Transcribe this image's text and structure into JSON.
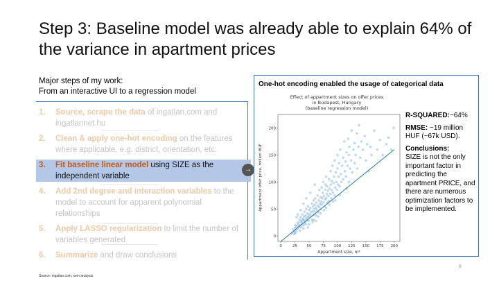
{
  "slide": {
    "title": "Step 3: Baseline model was already able to explain 64% of the variance in apartment prices",
    "steps_heading_1": "Major steps of my work:",
    "steps_heading_2": "From an interactive UI to a regression model",
    "steps": [
      {
        "num": "1.",
        "key": "Source, scrape the data",
        "rest": " of ingatlan.com and ingatlannet.hu"
      },
      {
        "num": "2.",
        "key": "Clean & apply one-hot encoding",
        "rest": " on the features where applicable, e.g. district, orientation, etc."
      },
      {
        "num": "3.",
        "key": "Fit baseline linear model",
        "rest": " using SIZE as the independent variable"
      },
      {
        "num": "4.",
        "key": "Add 2nd degree and interaction variables",
        "rest": " to the model to account for apparent polynomial relationships"
      },
      {
        "num": "5.",
        "key": "Apply LASSO regularization",
        "rest": " to limit the number of variables generated"
      },
      {
        "num": "6.",
        "key": "Summarize",
        "rest": " and draw conclusions"
      }
    ],
    "connector_icon": "arrow-right-icon",
    "panel_title": "One-hot encoding enabled the usage of categorical data",
    "stats": {
      "r2_label": "R-SQUARED:",
      "r2_value": "~64%",
      "rmse_label": "RMSE:",
      "rmse_value": " ~19 million HUF (~67k USD).",
      "conclusions_label": "Conclusions:",
      "conclusions_text": "SIZE is not the only important factor in predicting the apartment PRICE, and there are numerous optimization factors to be implemented."
    },
    "source": "Source: ingatlan.com, own analysis",
    "page_number": "8"
  },
  "chart_data": {
    "type": "scatter",
    "title_lines": [
      "Effect of appartment sizes on offer prices",
      "in Budapest, Hungary",
      "(baseline regression model)"
    ],
    "xlabel": "Appartment size, m²",
    "ylabel": "Appartment offer price, million HUF",
    "xlim": [
      -5,
      210
    ],
    "ylim": [
      -10,
      225
    ],
    "xticks": [
      0,
      25,
      50,
      75,
      100,
      125,
      150,
      175,
      200
    ],
    "yticks": [
      0,
      50,
      100,
      150,
      200
    ],
    "point_color": "#1f77b4",
    "regression_line": {
      "x": [
        0,
        200
      ],
      "y": [
        -10,
        160
      ]
    },
    "points": [
      [
        20,
        5
      ],
      [
        22,
        12
      ],
      [
        24,
        8
      ],
      [
        25,
        15
      ],
      [
        26,
        20
      ],
      [
        27,
        10
      ],
      [
        28,
        18
      ],
      [
        30,
        14
      ],
      [
        30,
        25
      ],
      [
        31,
        22
      ],
      [
        32,
        18
      ],
      [
        33,
        30
      ],
      [
        34,
        20
      ],
      [
        35,
        26
      ],
      [
        35,
        35
      ],
      [
        36,
        16
      ],
      [
        37,
        28
      ],
      [
        38,
        24
      ],
      [
        38,
        40
      ],
      [
        39,
        32
      ],
      [
        40,
        20
      ],
      [
        40,
        30
      ],
      [
        41,
        36
      ],
      [
        42,
        28
      ],
      [
        42,
        45
      ],
      [
        43,
        25
      ],
      [
        44,
        38
      ],
      [
        45,
        33
      ],
      [
        45,
        50
      ],
      [
        46,
        30
      ],
      [
        47,
        42
      ],
      [
        48,
        36
      ],
      [
        48,
        55
      ],
      [
        49,
        28
      ],
      [
        50,
        40
      ],
      [
        50,
        48
      ],
      [
        51,
        35
      ],
      [
        52,
        52
      ],
      [
        53,
        44
      ],
      [
        54,
        38
      ],
      [
        55,
        60
      ],
      [
        55,
        30
      ],
      [
        56,
        46
      ],
      [
        57,
        55
      ],
      [
        58,
        40
      ],
      [
        58,
        66
      ],
      [
        59,
        50
      ],
      [
        60,
        45
      ],
      [
        60,
        58
      ],
      [
        61,
        70
      ],
      [
        62,
        38
      ],
      [
        62,
        52
      ],
      [
        63,
        62
      ],
      [
        64,
        48
      ],
      [
        65,
        75
      ],
      [
        65,
        56
      ],
      [
        66,
        44
      ],
      [
        67,
        66
      ],
      [
        68,
        54
      ],
      [
        68,
        85
      ],
      [
        69,
        60
      ],
      [
        70,
        50
      ],
      [
        70,
        72
      ],
      [
        71,
        64
      ],
      [
        72,
        90
      ],
      [
        72,
        58
      ],
      [
        73,
        70
      ],
      [
        74,
        80
      ],
      [
        75,
        62
      ],
      [
        75,
        100
      ],
      [
        76,
        74
      ],
      [
        77,
        55
      ],
      [
        78,
        86
      ],
      [
        78,
        68
      ],
      [
        79,
        95
      ],
      [
        80,
        70
      ],
      [
        80,
        110
      ],
      [
        81,
        78
      ],
      [
        82,
        62
      ],
      [
        82,
        92
      ],
      [
        83,
        84
      ],
      [
        84,
        74
      ],
      [
        85,
        105
      ],
      [
        85,
        65
      ],
      [
        86,
        88
      ],
      [
        87,
        78
      ],
      [
        88,
        120
      ],
      [
        88,
        95
      ],
      [
        89,
        70
      ],
      [
        90,
        85
      ],
      [
        90,
        102
      ],
      [
        91,
        130
      ],
      [
        92,
        80
      ],
      [
        93,
        98
      ],
      [
        94,
        110
      ],
      [
        95,
        75
      ],
      [
        95,
        140
      ],
      [
        96,
        90
      ],
      [
        97,
        118
      ],
      [
        98,
        100
      ],
      [
        99,
        86
      ],
      [
        100,
        125
      ],
      [
        100,
        150
      ],
      [
        101,
        95
      ],
      [
        102,
        110
      ],
      [
        103,
        135
      ],
      [
        104,
        92
      ],
      [
        105,
        160
      ],
      [
        106,
        115
      ],
      [
        107,
        100
      ],
      [
        108,
        130
      ],
      [
        110,
        145
      ],
      [
        110,
        105
      ],
      [
        112,
        175
      ],
      [
        113,
        120
      ],
      [
        114,
        138
      ],
      [
        115,
        110
      ],
      [
        116,
        155
      ],
      [
        118,
        130
      ],
      [
        119,
        180
      ],
      [
        120,
        100
      ],
      [
        120,
        150
      ],
      [
        121,
        165
      ],
      [
        122,
        125
      ],
      [
        124,
        140
      ],
      [
        125,
        195
      ],
      [
        126,
        118
      ],
      [
        128,
        160
      ],
      [
        130,
        135
      ],
      [
        130,
        172
      ],
      [
        132,
        150
      ],
      [
        134,
        190
      ],
      [
        135,
        125
      ],
      [
        137,
        165
      ],
      [
        138,
        205
      ],
      [
        140,
        145
      ],
      [
        142,
        175
      ],
      [
        145,
        160
      ],
      [
        148,
        185
      ],
      [
        150,
        140
      ],
      [
        152,
        170
      ],
      [
        155,
        120
      ],
      [
        158,
        165
      ],
      [
        160,
        150
      ],
      [
        165,
        195
      ],
      [
        170,
        160
      ],
      [
        175,
        178
      ],
      [
        180,
        150
      ],
      [
        186,
        170
      ],
      [
        190,
        182
      ],
      [
        195,
        160
      ],
      [
        199,
        200
      ],
      [
        40,
        60
      ],
      [
        45,
        70
      ],
      [
        52,
        80
      ],
      [
        30,
        40
      ],
      [
        28,
        35
      ],
      [
        60,
        95
      ],
      [
        35,
        48
      ],
      [
        44,
        22
      ],
      [
        56,
        26
      ],
      [
        66,
        36
      ],
      [
        76,
        48
      ],
      [
        86,
        58
      ],
      [
        96,
        66
      ],
      [
        58,
        30
      ],
      [
        62,
        28
      ],
      [
        50,
        22
      ],
      [
        40,
        14
      ],
      [
        34,
        10
      ],
      [
        26,
        6
      ],
      [
        24,
        4
      ],
      [
        48,
        16
      ],
      [
        70,
        42
      ],
      [
        80,
        52
      ],
      [
        92,
        64
      ],
      [
        104,
        76
      ],
      [
        116,
        88
      ]
    ]
  }
}
